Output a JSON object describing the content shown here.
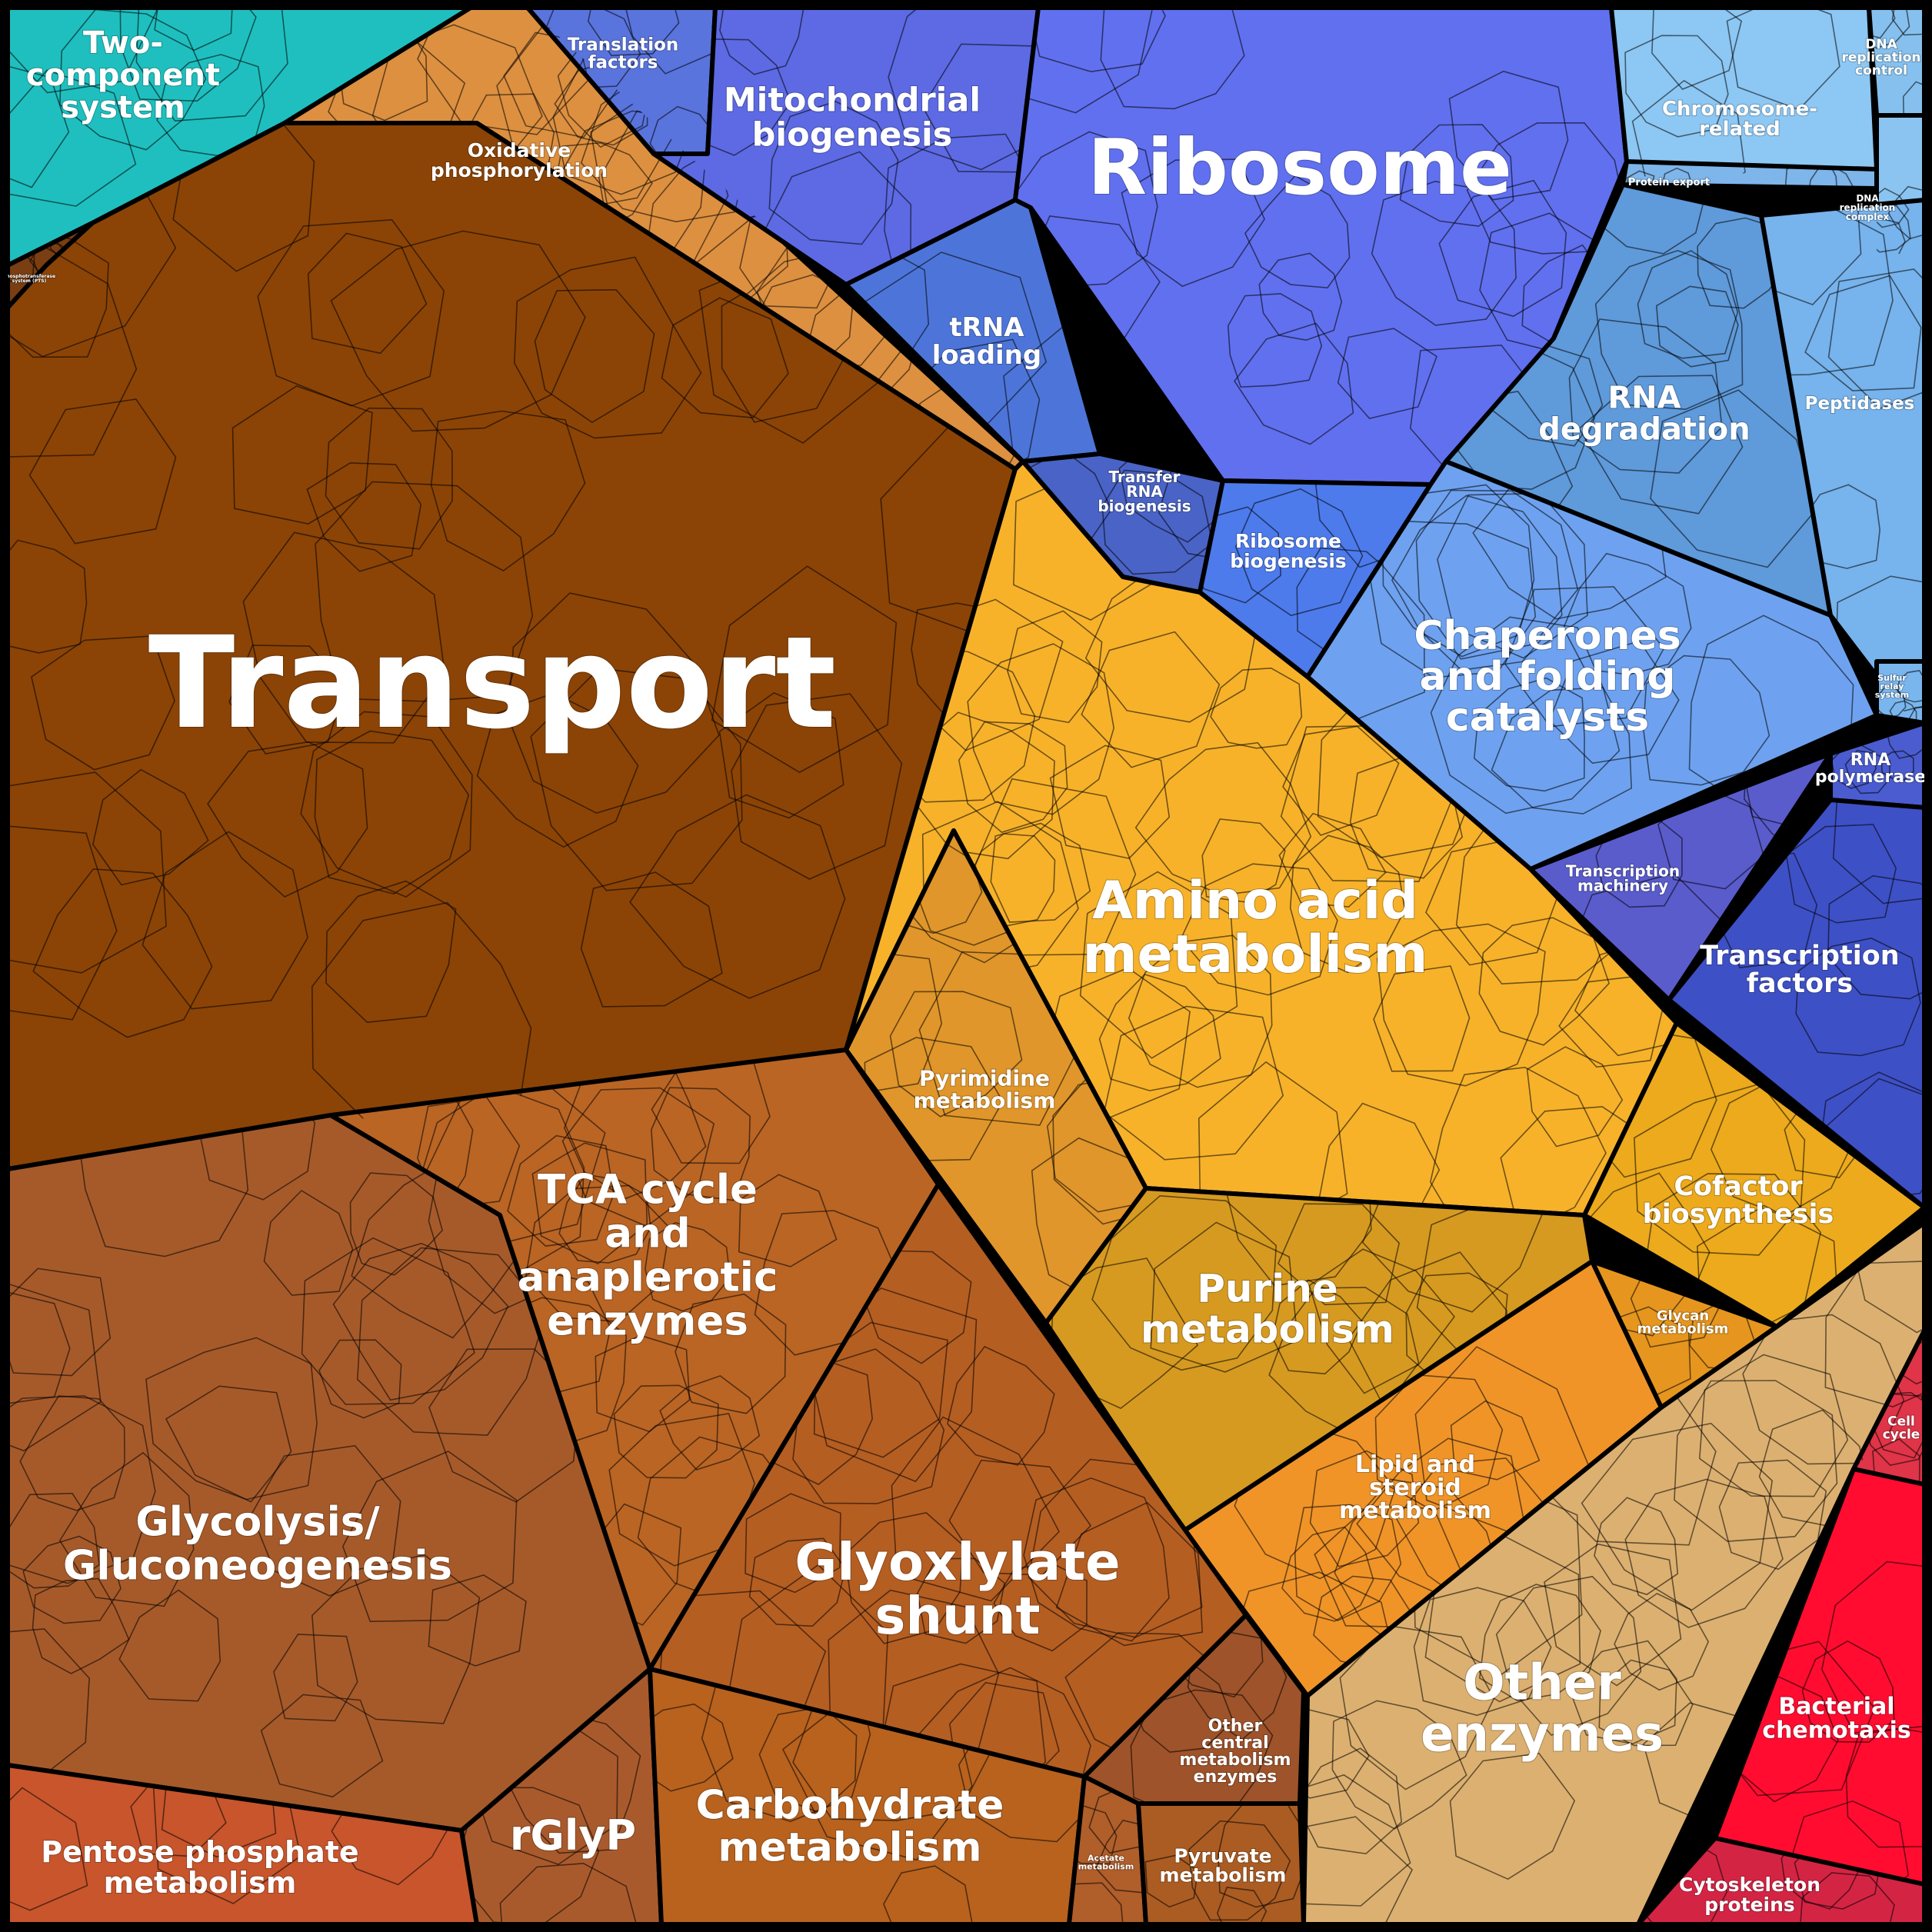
{
  "regions": [
    {
      "id": "two-component",
      "label": "Two-\ncomponent\nsystem",
      "color": "#1fbfbf"
    },
    {
      "id": "oxidative",
      "label": "Oxidative\nphosphorylation",
      "color": "#dd9040"
    },
    {
      "id": "transport",
      "label": "Transport",
      "color": "#8b4406"
    },
    {
      "id": "translation-factors",
      "label": "Translation\nfactors",
      "color": "#5a74dd"
    },
    {
      "id": "mitochondrial",
      "label": "Mitochondrial\nbiogenesis",
      "color": "#5d6ae4"
    },
    {
      "id": "ribosome",
      "label": "Ribosome",
      "color": "#6170ef"
    },
    {
      "id": "trna-loading",
      "label": "tRNA\nloading",
      "color": "#4d75d9"
    },
    {
      "id": "transfer-rna",
      "label": "Transfer\nRNA\nbiogenesis",
      "color": "#4a63c6"
    },
    {
      "id": "ribosome-biogenesis",
      "label": "Ribosome\nbiogenesis",
      "color": "#4d7bec"
    },
    {
      "id": "chromosome",
      "label": "Chromosome-\nrelated",
      "color": "#8dc7f3"
    },
    {
      "id": "dna-replication-control",
      "label": "DNA\nreplication\ncontrol",
      "color": "#86c0ee"
    },
    {
      "id": "protein-export",
      "label": "Protein export",
      "color": "#7eb5ea"
    },
    {
      "id": "dna-replication-complex",
      "label": "DNA\nreplication\ncomplex",
      "color": "#8bc4f0"
    },
    {
      "id": "rna-degradation",
      "label": "RNA\ndegradation",
      "color": "#5f9ada"
    },
    {
      "id": "peptidases",
      "label": "Peptidases",
      "color": "#77b3ec"
    },
    {
      "id": "sulfur-relay",
      "label": "Sulfur\nrelay\nsystem",
      "color": "#7ab6ee"
    },
    {
      "id": "chaperones",
      "label": "Chaperones\nand folding\ncatalysts",
      "color": "#6ea2f0"
    },
    {
      "id": "rna-polymerase",
      "label": "RNA\npolymerase",
      "color": "#4a5ccf"
    },
    {
      "id": "transcription-machinery",
      "label": "Transcription\nmachinery",
      "color": "#5a5ccc"
    },
    {
      "id": "transcription-factors",
      "label": "Transcription\nfactors",
      "color": "#3e50c6"
    },
    {
      "id": "amino-acid",
      "label": "Amino acid\nmetabolism",
      "color": "#f7b22a"
    },
    {
      "id": "pyrimidine",
      "label": "Pyrimidine\nmetabolism",
      "color": "#e0962a"
    },
    {
      "id": "cofactor",
      "label": "Cofactor\nbiosynthesis",
      "color": "#ecaa1c"
    },
    {
      "id": "purine",
      "label": "Purine\nmetabolism",
      "color": "#d69a20"
    },
    {
      "id": "glycan",
      "label": "Glycan\nmetabolism",
      "color": "#e6961e"
    },
    {
      "id": "lipid",
      "label": "Lipid and\nsteroid\nmetabolism",
      "color": "#f09428"
    },
    {
      "id": "tca",
      "label": "TCA cycle\nand\nanaplerotic\nenzymes",
      "color": "#ba6524"
    },
    {
      "id": "glycolysis",
      "label": "Glycolysis/\nGluconeogenesis",
      "color": "#a65a2a"
    },
    {
      "id": "glyoxylate",
      "label": "Glyoxlylate\nshunt",
      "color": "#b55e22"
    },
    {
      "id": "pentose",
      "label": "Pentose phosphate\nmetabolism",
      "color": "#c8552c"
    },
    {
      "id": "rglyp",
      "label": "rGlyP",
      "color": "#a95a2c"
    },
    {
      "id": "carbohydrate",
      "label": "Carbohydrate\nmetabolism",
      "color": "#b8621e"
    },
    {
      "id": "other-central",
      "label": "Other\ncentral\nmetabolism\nenzymes",
      "color": "#9e532a"
    },
    {
      "id": "acetate",
      "label": "Acetate\nmetabolism",
      "color": "#b05e2a"
    },
    {
      "id": "pyruvate",
      "label": "Pyruvate\nmetabolism",
      "color": "#ab5c22"
    },
    {
      "id": "other-enzymes",
      "label": "Other\nenzymes",
      "color": "#dcb070"
    },
    {
      "id": "cell-cycle",
      "label": "Cell\ncycle",
      "color": "#e03448"
    },
    {
      "id": "chemotaxis",
      "label": "Bacterial\nchemotaxis",
      "color": "#ff0c30"
    },
    {
      "id": "cytoskeleton",
      "label": "Cytoskeleton\nproteins",
      "color": "#d42444"
    },
    {
      "id": "phospho",
      "label": "Phosphotransferase\nsystem (PTS)",
      "color": "#7a3e12"
    }
  ]
}
